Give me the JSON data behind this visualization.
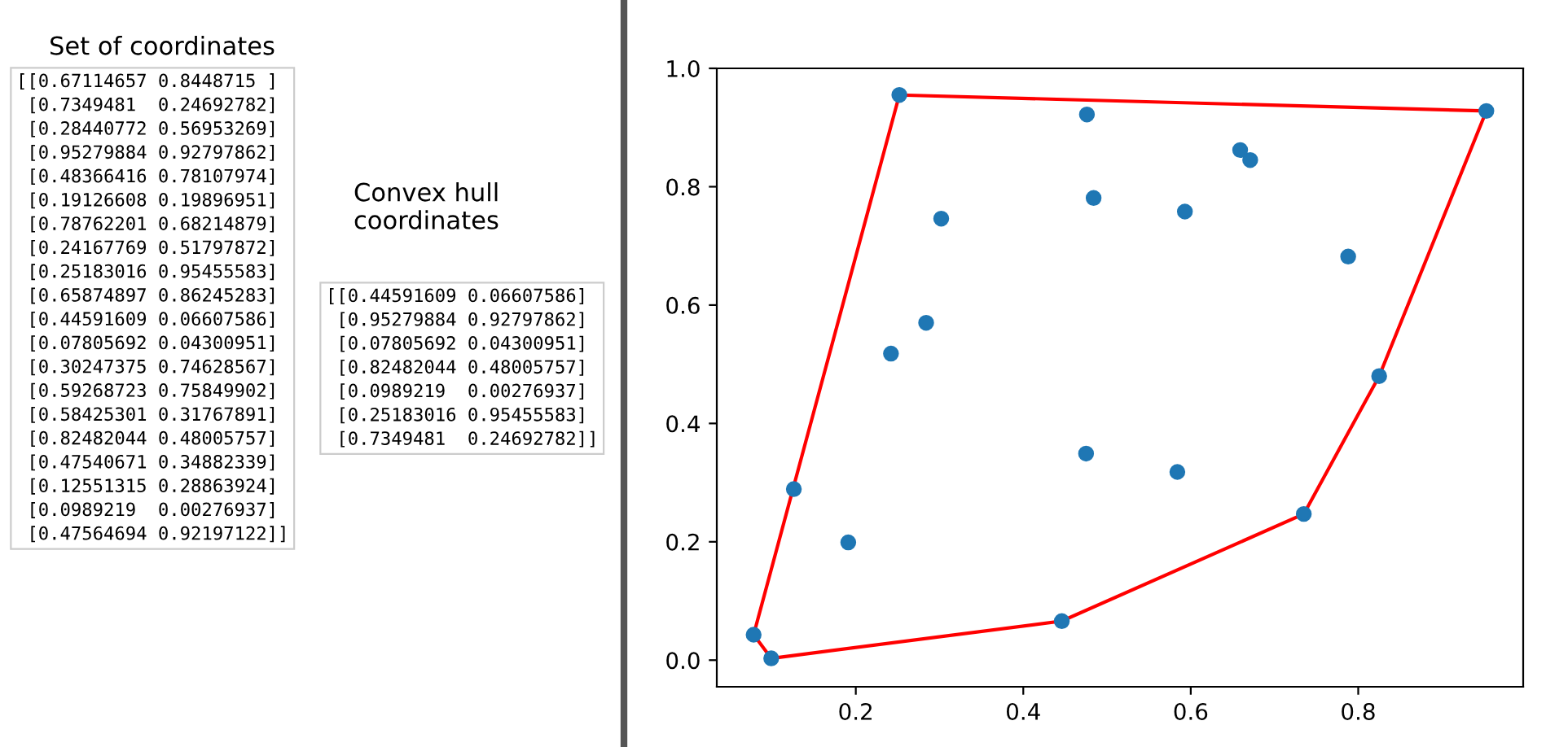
{
  "chart_data": {
    "type": "scatter",
    "annotations": [
      "Set of coordinates",
      "[[0.67114657 0.8448715 ]\n [0.7349481  0.24692782]\n [0.28440772 0.56953269]\n [0.95279884 0.92797862]\n [0.48366416 0.78107974]\n [0.19126608 0.19896951]\n [0.78762201 0.68214879]\n [0.24167769 0.51797872]\n [0.25183016 0.95455583]\n [0.65874897 0.86245283]\n [0.44591609 0.06607586]\n [0.07805692 0.04300951]\n [0.30247375 0.74628567]\n [0.59268723 0.75849902]\n [0.58425301 0.31767891]\n [0.82482044 0.48005757]\n [0.47540671 0.34882339]\n [0.12551315 0.28863924]\n [0.0989219  0.00276937]\n [0.47564694 0.92197122]]",
      "Convex hull\ncoordinates",
      "[[0.44591609 0.06607586]\n [0.95279884 0.92797862]\n [0.07805692 0.04300951]\n [0.82482044 0.48005757]\n [0.0989219  0.00276937]\n [0.25183016 0.95455583]\n [0.7349481  0.24692782]]"
    ],
    "series": [
      {
        "color": "#1f77b4",
        "marker": "circle",
        "x": [
          0.671,
          0.735,
          0.284,
          0.953,
          0.484,
          0.191,
          0.788,
          0.242,
          0.252,
          0.659,
          0.446,
          0.078,
          0.302,
          0.593,
          0.584,
          0.825,
          0.475,
          0.126,
          0.099,
          0.476
        ],
        "values": [
          0.845,
          0.247,
          0.57,
          0.928,
          0.781,
          0.199,
          0.682,
          0.518,
          0.955,
          0.862,
          0.066,
          0.043,
          0.746,
          0.758,
          0.318,
          0.48,
          0.349,
          0.289,
          0.003,
          0.922
        ]
      },
      {
        "type": "line",
        "color": "#ff0000",
        "marker": "none",
        "line_style": "solid",
        "x": [
          0.078,
          0.099,
          0.446,
          0.735,
          0.825,
          0.953
        ],
        "values": [
          0.043,
          0.003,
          0.066,
          0.247,
          0.48,
          0.928
        ]
      },
      {
        "type": "line",
        "color": "#ff0000",
        "marker": "none",
        "line_style": "solid",
        "x": [
          0.078,
          0.252,
          0.953
        ],
        "values": [
          0.043,
          0.955,
          0.928
        ]
      }
    ],
    "xlim": [
      0.034,
      0.997
    ],
    "ylim": [
      -0.045,
      1.0
    ],
    "xticks": [
      {
        "value": 0.2,
        "label": "0.2"
      },
      {
        "value": 0.4,
        "label": "0.4"
      },
      {
        "value": 0.6,
        "label": "0.6"
      },
      {
        "value": 0.8,
        "label": "0.8"
      }
    ],
    "yticks": [
      {
        "value": 0.0,
        "label": "0.0"
      },
      {
        "value": 0.2,
        "label": "0.2"
      },
      {
        "value": 0.4,
        "label": "0.4"
      },
      {
        "value": 0.6,
        "label": "0.6"
      },
      {
        "value": 0.8,
        "label": "0.8"
      },
      {
        "value": 1.0,
        "label": "1.0"
      }
    ],
    "grid": false
  }
}
